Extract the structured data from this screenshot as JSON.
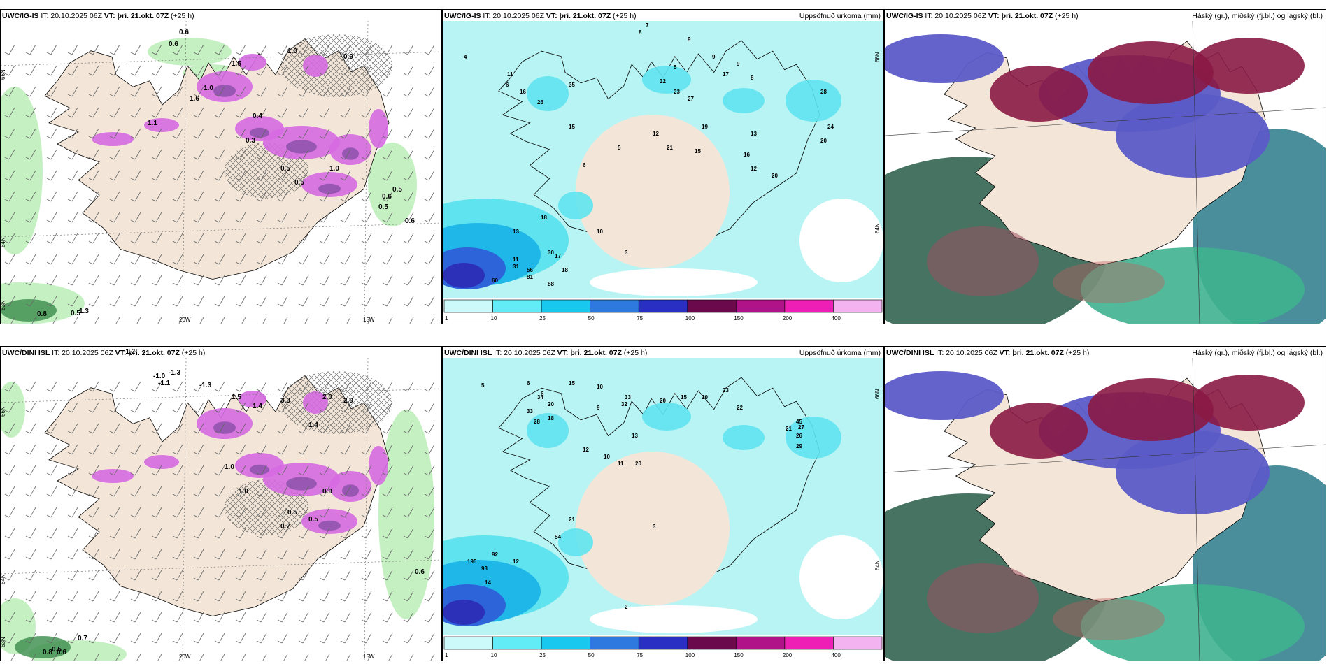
{
  "panels": [
    {
      "id": "p1",
      "title_model": "UWC/IG-IS",
      "title_it": "IT: 20.10.2025 06Z",
      "title_vt_label": "VT:",
      "title_vt": "þri. 21.okt. 07Z",
      "title_lead": "(+25 h)",
      "title_right": "",
      "type": "icing",
      "axis": {
        "lat1": "66N",
        "lat2": "64N",
        "lat3": "63N",
        "lon1": "20W",
        "lon2": "15W"
      },
      "values": [
        "0.6",
        "0.6",
        "0.9",
        "1.0",
        "1.5",
        "1.0",
        "0.4",
        "0.3",
        "0.5",
        "1.0",
        "0.5",
        "0.5",
        "0.6",
        "0.5",
        "0.6",
        "0.8",
        "0.5",
        "1.3",
        "1.6",
        "1.1"
      ]
    },
    {
      "id": "p2",
      "title_model": "UWC/IG-IS",
      "title_it": "IT: 20.10.2025 06Z",
      "title_vt_label": "VT:",
      "title_vt": "þri. 21.okt. 07Z",
      "title_lead": "(+25 h)",
      "title_right": "Uppsöfnuð úrkoma (mm)",
      "type": "precip",
      "axis": {
        "lat1": "66N",
        "lat2": "64N"
      },
      "values": [
        "4",
        "8",
        "7",
        "9",
        "9",
        "9",
        "8",
        "5",
        "6",
        "11",
        "16",
        "35",
        "26",
        "15",
        "5",
        "32",
        "23",
        "27",
        "19",
        "17",
        "13",
        "16",
        "20",
        "28",
        "24",
        "20",
        "12",
        "21",
        "15",
        "12",
        "13",
        "18",
        "30",
        "31",
        "56",
        "60",
        "81",
        "88",
        "18",
        "17",
        "10",
        "11",
        "3",
        "6"
      ],
      "colorbar": [
        "1",
        "10",
        "25",
        "50",
        "75",
        "100",
        "150",
        "200",
        "400"
      ]
    },
    {
      "id": "p3",
      "title_model": "UWC/IG-IS",
      "title_it": "IT: 20.10.2025 06Z",
      "title_vt_label": "VT:",
      "title_vt": "þri. 21.okt. 07Z",
      "title_lead": "(+25 h)",
      "title_right": "Háský (gr.), miðský (fj.bl.) og lágský (bl.)",
      "type": "cloud"
    },
    {
      "id": "p4",
      "title_model": "UWC/DINI ISL",
      "title_it": "IT: 20.10.2025 06Z",
      "title_vt_label": "VT:",
      "title_vt": "þri. 21.okt. 07Z",
      "title_lead": "(+25",
      "title_lead2": "h)",
      "title_right": "",
      "type": "icing",
      "axis": {
        "lat1": "66N",
        "lat2": "64N",
        "lat3": "63N",
        "lon1": "20W",
        "lon2": "15W"
      },
      "values": [
        "-1.2",
        "-1.0",
        "-1.3",
        "-1.1",
        "-1.3",
        "1.5",
        "1.4",
        "3.3",
        "2.0",
        "2.9",
        "1.4",
        "0.5",
        "0.7",
        "0.5",
        "0.7",
        "0.6",
        "0.8",
        "0.5",
        "0.6",
        "1.0",
        "1.0",
        "0.9"
      ]
    },
    {
      "id": "p5",
      "title_model": "UWC/DINI ISL",
      "title_it": "IT: 20.10.2025 06Z",
      "title_vt_label": "VT:",
      "title_vt": "þri. 21.okt. 07Z",
      "title_lead": "(+25 h)",
      "title_right": "Uppsöfnuð úrkoma (mm)",
      "type": "precip",
      "axis": {
        "lat1": "66N",
        "lat2": "64N"
      },
      "values": [
        "5",
        "6",
        "15",
        "10",
        "6",
        "20",
        "34",
        "33",
        "28",
        "18",
        "9",
        "33",
        "32",
        "20",
        "15",
        "20",
        "23",
        "22",
        "45",
        "27",
        "26",
        "29",
        "21",
        "12",
        "10",
        "11",
        "13",
        "20",
        "21",
        "54",
        "195",
        "92",
        "93",
        "12",
        "14",
        "3",
        "2"
      ],
      "colorbar": [
        "1",
        "10",
        "25",
        "50",
        "75",
        "100",
        "150",
        "200",
        "400"
      ]
    },
    {
      "id": "p6",
      "title_model": "UWC/DINI ISL",
      "title_it": "IT: 20.10.2025 06Z",
      "title_vt_label": "VT:",
      "title_vt": "þri. 21.okt. 07Z",
      "title_lead": "(+25 h)",
      "title_right": "Háský (gr.), miðský (fj.bl.) og lágský (bl.)",
      "type": "cloud"
    }
  ],
  "colors": {
    "land": "#f3e6d8",
    "ocean_precip": "#b9f4f4",
    "precip_10": "#5fe3ef",
    "precip_25": "#1fb6e8",
    "precip_50": "#2e64d9",
    "precip_75": "#2c2fb8",
    "icing": "#d66ae2",
    "icing_dark": "#7b4a9e",
    "green_light": "#bfeebb",
    "green_dark": "#3a8c4b",
    "cloud_high": "#3d6b5b",
    "cloud_mid": "#5b5bc8",
    "cloud_low": "#8a1a45",
    "colorbar": [
      "#ccfafa",
      "#62ecf6",
      "#18c8ee",
      "#2e79e0",
      "#2a2fc4",
      "#6a0a4c",
      "#b01288",
      "#ee1fb4",
      "#f3b3f0"
    ]
  }
}
